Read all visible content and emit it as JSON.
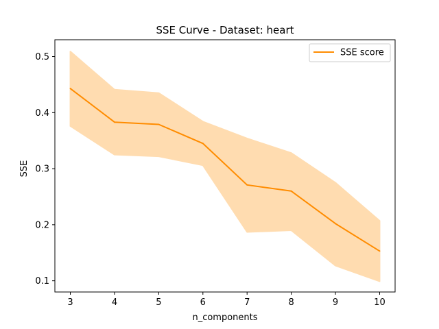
{
  "chart_data": {
    "type": "line",
    "title": "SSE Curve - Dataset: heart",
    "xlabel": "n_components",
    "ylabel": "SSE",
    "x": [
      3,
      4,
      5,
      6,
      7,
      8,
      9,
      10
    ],
    "xlim": [
      2.65,
      10.35
    ],
    "ylim": [
      0.08,
      0.53
    ],
    "xticks": [
      "3",
      "4",
      "5",
      "6",
      "7",
      "8",
      "9",
      "10"
    ],
    "yticks": [
      "0.1",
      "0.2",
      "0.3",
      "0.4",
      "0.5"
    ],
    "grid": false,
    "legend_position": "top-right",
    "series": [
      {
        "name": "SSE score",
        "color": "#ff8c00",
        "values": [
          0.443,
          0.383,
          0.379,
          0.345,
          0.271,
          0.26,
          0.202,
          0.153
        ],
        "band_lower": [
          0.376,
          0.325,
          0.322,
          0.306,
          0.187,
          0.19,
          0.127,
          0.099
        ],
        "band_upper": [
          0.509,
          0.441,
          0.435,
          0.384,
          0.354,
          0.328,
          0.275,
          0.207
        ],
        "band_color": "#ffdcb0"
      }
    ]
  }
}
